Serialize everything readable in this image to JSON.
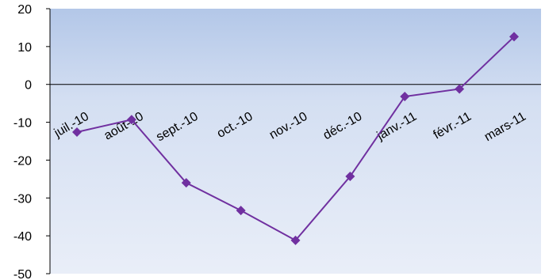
{
  "chart_data": {
    "type": "line",
    "title": "",
    "xlabel": "",
    "ylabel": "",
    "categories": [
      "juil.-10",
      "août-10",
      "sept.-10",
      "oct.-10",
      "nov.-10",
      "déc.-10",
      "janv.-11",
      "févr.-11",
      "mars-11"
    ],
    "series": [
      {
        "values": [
          -12.6,
          -9.3,
          -26.0,
          -33.3,
          -41.2,
          -24.3,
          -3.2,
          -1.2,
          12.6
        ]
      }
    ],
    "ylim": [
      -50,
      20
    ],
    "yticks": [
      "-50",
      "-40",
      "-30",
      "-20",
      "-10",
      "0",
      "10",
      "20"
    ],
    "legend": "none",
    "grid": false,
    "colors": {
      "line": "#7030A0",
      "marker": "#7030A0",
      "background_top": "#B3C7E8",
      "background_bottom": "#E9EEF8",
      "axis": "#000000"
    }
  }
}
